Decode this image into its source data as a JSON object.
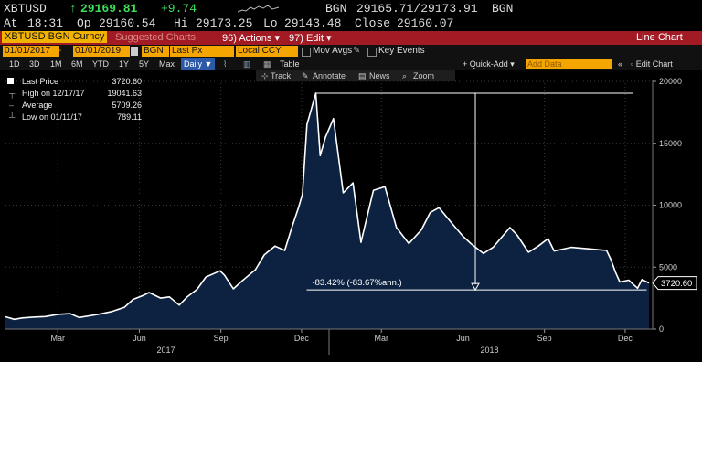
{
  "quote": {
    "ticker": "XBTUSD",
    "arrow": "↑",
    "last": "29169.81",
    "change": "+9.74",
    "source_a": "BGN",
    "bid_ask": "29165.71/29173.91",
    "source_b": "BGN",
    "at_label": "At",
    "at_time": "18:31",
    "op_label": "Op",
    "op_value": "29160.54",
    "hi_label": "Hi",
    "hi_value": "29173.25",
    "lo_label": "Lo",
    "lo_value": "29143.48",
    "close_label": "Close",
    "close_value": "29160.07"
  },
  "titlebar": {
    "security": "XBTUSD BGN Curncy",
    "suggested": "Suggested Charts",
    "actions": "96) Actions",
    "edit": "97) Edit",
    "title": "Line Chart",
    "bg_color": "#a21a23"
  },
  "controls": {
    "date_from": "01/01/2017",
    "date_to": "01/01/2019",
    "source": "BGN",
    "field": "Last Px",
    "currency": "Local CCY",
    "mov_avgs": "Mov Avgs",
    "key_events": "Key Events"
  },
  "periods": {
    "items": [
      "1D",
      "3D",
      "1M",
      "6M",
      "YTD",
      "1Y",
      "5Y",
      "Max"
    ],
    "frequency": "Daily",
    "table": "Table",
    "quick_add": "Quick-Add",
    "add_data_placeholder": "Add Data",
    "edit_chart": "Edit Chart"
  },
  "tools": [
    "Track",
    "Annotate",
    "News",
    "Zoom"
  ],
  "legend": [
    {
      "label": "Last Price",
      "value": "3720.60"
    },
    {
      "label": "High on 12/17/17",
      "value": "19041.63"
    },
    {
      "label": "Average",
      "value": "5709.26"
    },
    {
      "label": "Low on 01/11/17",
      "value": "789.11"
    }
  ],
  "chart_data": {
    "type": "area",
    "x_start": "2017-01-01",
    "x_end": "2019-01-01",
    "ylim": [
      0,
      20000
    ],
    "y_ticks": [
      0,
      5000,
      10000,
      15000,
      20000
    ],
    "x_ticks": [
      "Mar",
      "Jun",
      "Sep",
      "Dec",
      "Mar",
      "Jun",
      "Sep",
      "Dec"
    ],
    "x_ticks_dates": [
      "2017-03-01",
      "2017-06-01",
      "2017-09-01",
      "2017-12-01",
      "2018-03-01",
      "2018-06-01",
      "2018-09-01",
      "2018-12-01"
    ],
    "year_labels": [
      "2017",
      "2018"
    ],
    "year_label_dates": [
      "2017-07-01",
      "2018-07-01"
    ],
    "series": [
      {
        "name": "Last Price",
        "line_color": "#ffffff",
        "fill_color": "#0d2240",
        "points": [
          [
            "2017-01-01",
            998
          ],
          [
            "2017-01-11",
            789
          ],
          [
            "2017-01-20",
            900
          ],
          [
            "2017-02-01",
            970
          ],
          [
            "2017-02-15",
            1010
          ],
          [
            "2017-03-01",
            1190
          ],
          [
            "2017-03-15",
            1250
          ],
          [
            "2017-03-25",
            940
          ],
          [
            "2017-04-15",
            1180
          ],
          [
            "2017-05-01",
            1420
          ],
          [
            "2017-05-15",
            1750
          ],
          [
            "2017-05-25",
            2400
          ],
          [
            "2017-06-05",
            2700
          ],
          [
            "2017-06-12",
            2950
          ],
          [
            "2017-06-25",
            2500
          ],
          [
            "2017-07-05",
            2600
          ],
          [
            "2017-07-16",
            1930
          ],
          [
            "2017-07-25",
            2600
          ],
          [
            "2017-08-05",
            3200
          ],
          [
            "2017-08-15",
            4200
          ],
          [
            "2017-08-31",
            4700
          ],
          [
            "2017-09-05",
            4350
          ],
          [
            "2017-09-15",
            3250
          ],
          [
            "2017-09-25",
            3900
          ],
          [
            "2017-10-10",
            4800
          ],
          [
            "2017-10-20",
            6000
          ],
          [
            "2017-11-01",
            6700
          ],
          [
            "2017-11-12",
            6350
          ],
          [
            "2017-11-20",
            8200
          ],
          [
            "2017-11-28",
            9900
          ],
          [
            "2017-12-02",
            10900
          ],
          [
            "2017-12-07",
            16500
          ],
          [
            "2017-12-17",
            19041
          ],
          [
            "2017-12-22",
            14000
          ],
          [
            "2017-12-28",
            15500
          ],
          [
            "2018-01-06",
            17000
          ],
          [
            "2018-01-17",
            11000
          ],
          [
            "2018-01-28",
            11800
          ],
          [
            "2018-02-06",
            7000
          ],
          [
            "2018-02-20",
            11200
          ],
          [
            "2018-03-05",
            11500
          ],
          [
            "2018-03-18",
            8200
          ],
          [
            "2018-04-01",
            6900
          ],
          [
            "2018-04-15",
            8000
          ],
          [
            "2018-04-25",
            9400
          ],
          [
            "2018-05-05",
            9800
          ],
          [
            "2018-05-20",
            8500
          ],
          [
            "2018-06-01",
            7500
          ],
          [
            "2018-06-10",
            6900
          ],
          [
            "2018-06-24",
            6100
          ],
          [
            "2018-07-05",
            6600
          ],
          [
            "2018-07-24",
            8200
          ],
          [
            "2018-08-01",
            7600
          ],
          [
            "2018-08-14",
            6200
          ],
          [
            "2018-08-25",
            6700
          ],
          [
            "2018-09-05",
            7300
          ],
          [
            "2018-09-12",
            6300
          ],
          [
            "2018-10-01",
            6600
          ],
          [
            "2018-10-25",
            6450
          ],
          [
            "2018-11-10",
            6350
          ],
          [
            "2018-11-15",
            5600
          ],
          [
            "2018-11-20",
            4600
          ],
          [
            "2018-11-25",
            3800
          ],
          [
            "2018-12-05",
            3950
          ],
          [
            "2018-12-15",
            3300
          ],
          [
            "2018-12-20",
            4000
          ],
          [
            "2018-12-28",
            3720
          ]
        ]
      }
    ],
    "last_value_label": "3720.60",
    "annotation": {
      "text": "-83.42% (-83.67%ann.)",
      "from": [
        "2017-12-17",
        19041
      ],
      "to": [
        "2018-12-15",
        3160
      ],
      "arrow_date": "2018-06-15"
    }
  }
}
